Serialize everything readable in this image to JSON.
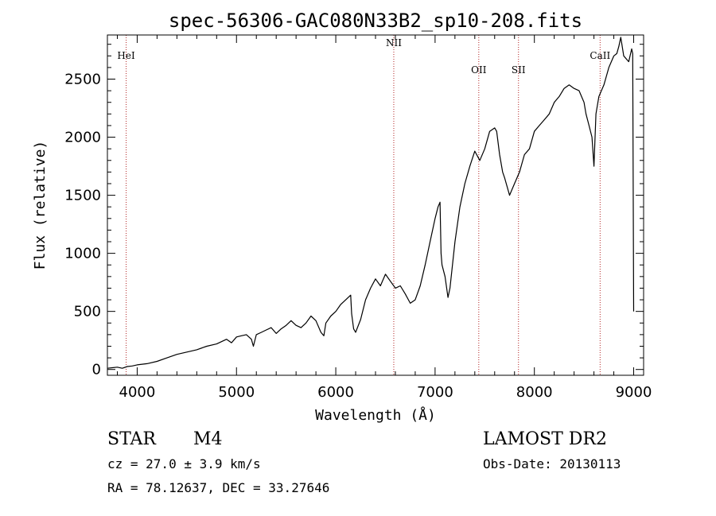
{
  "chart_data": {
    "type": "line",
    "title": "spec-56306-GAC080N33B2_sp10-208.fits",
    "xlabel": "Wavelength (Å)",
    "ylabel": "Flux (relative)",
    "xlim": [
      3700,
      9100
    ],
    "ylim": [
      -50,
      2880
    ],
    "xticks": [
      4000,
      5000,
      6000,
      7000,
      8000,
      9000
    ],
    "yticks": [
      0,
      500,
      1000,
      1500,
      2000,
      2500
    ],
    "grid": false,
    "series": [
      {
        "x": [
          3700,
          3750,
          3800,
          3850,
          3900,
          3950,
          4000,
          4100,
          4200,
          4300,
          4400,
          4500,
          4600,
          4700,
          4800,
          4900,
          4950,
          5000,
          5050,
          5100,
          5150,
          5170,
          5200,
          5250,
          5300,
          5350,
          5400,
          5450,
          5500,
          5550,
          5600,
          5650,
          5700,
          5750,
          5800,
          5850,
          5880,
          5900,
          5950,
          6000,
          6050,
          6100,
          6150,
          6160,
          6180,
          6200,
          6250,
          6300,
          6350,
          6400,
          6450,
          6500,
          6550,
          6600,
          6650,
          6700,
          6750,
          6800,
          6850,
          6900,
          6950,
          7000,
          7030,
          7050,
          7060,
          7070,
          7100,
          7130,
          7150,
          7200,
          7250,
          7300,
          7350,
          7400,
          7450,
          7500,
          7550,
          7600,
          7620,
          7650,
          7680,
          7700,
          7750,
          7800,
          7850,
          7900,
          7950,
          8000,
          8050,
          8100,
          8150,
          8200,
          8250,
          8300,
          8350,
          8400,
          8450,
          8500,
          8520,
          8550,
          8580,
          8600,
          8620,
          8650,
          8700,
          8750,
          8800,
          8830,
          8850,
          8870,
          8900,
          8950,
          8980,
          8990,
          9000
        ],
        "y": [
          10,
          15,
          20,
          10,
          25,
          30,
          40,
          50,
          70,
          100,
          130,
          150,
          170,
          200,
          220,
          260,
          230,
          280,
          290,
          300,
          260,
          200,
          300,
          320,
          340,
          360,
          310,
          350,
          380,
          420,
          380,
          360,
          400,
          460,
          420,
          320,
          290,
          400,
          460,
          500,
          560,
          600,
          640,
          480,
          350,
          320,
          430,
          600,
          700,
          780,
          720,
          820,
          760,
          700,
          720,
          650,
          570,
          600,
          720,
          900,
          1100,
          1300,
          1400,
          1440,
          1000,
          900,
          800,
          620,
          700,
          1100,
          1400,
          1600,
          1750,
          1880,
          1800,
          1900,
          2050,
          2080,
          2050,
          1850,
          1700,
          1650,
          1500,
          1600,
          1700,
          1850,
          1900,
          2050,
          2100,
          2150,
          2200,
          2300,
          2350,
          2420,
          2450,
          2420,
          2400,
          2300,
          2200,
          2100,
          2000,
          1750,
          2200,
          2350,
          2450,
          2600,
          2700,
          2720,
          2780,
          2860,
          2700,
          2650,
          2760,
          2720,
          500
        ]
      }
    ],
    "lines": [
      {
        "name": "HeI",
        "x": 3889
      },
      {
        "name": "NII",
        "x": 6584
      },
      {
        "name": "OII",
        "x": 7440
      },
      {
        "name": "SII",
        "x": 7840
      },
      {
        "name": "CaII",
        "x": 8662
      }
    ]
  },
  "info": {
    "object_type": "STAR",
    "subclass": "M4",
    "survey": "LAMOST DR2",
    "redshift": "cz = 27.0 ± 3.9 km/s",
    "obs_date": "Obs-Date: 20130113",
    "coords": "RA =  78.12637, DEC =  33.27646"
  },
  "colors": {
    "spectrum": "#000000",
    "line_marker": "#b22222"
  }
}
